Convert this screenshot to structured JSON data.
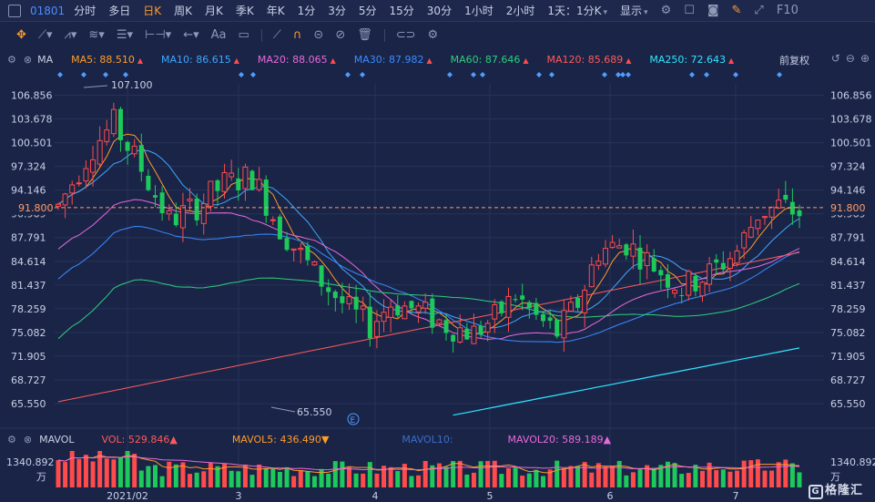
{
  "topbar": {
    "code": "01801",
    "tabs": [
      {
        "label": "分时",
        "active": false
      },
      {
        "label": "多日",
        "active": false
      },
      {
        "label": "日K",
        "active": true
      },
      {
        "label": "周K",
        "active": false
      },
      {
        "label": "月K",
        "active": false
      },
      {
        "label": "季K",
        "active": false
      },
      {
        "label": "年K",
        "active": false
      },
      {
        "label": "1分",
        "active": false
      },
      {
        "label": "3分",
        "active": false
      },
      {
        "label": "5分",
        "active": false
      },
      {
        "label": "15分",
        "active": false
      },
      {
        "label": "30分",
        "active": false
      },
      {
        "label": "1小时",
        "active": false
      },
      {
        "label": "2小时",
        "active": false
      }
    ],
    "period_select": "1天：1分K",
    "display_menu": "显示",
    "f10": "F10"
  },
  "ma_legend": {
    "name": "MA",
    "items": [
      {
        "label": "MA5: 88.510",
        "color": "#ff9c2a",
        "trend": "up"
      },
      {
        "label": "MA10: 86.615",
        "color": "#3fa8ff",
        "trend": "up"
      },
      {
        "label": "MA20: 88.065",
        "color": "#e86ad8",
        "trend": "up"
      },
      {
        "label": "MA30: 87.982",
        "color": "#3a8cff",
        "trend": "up"
      },
      {
        "label": "MA60: 87.646",
        "color": "#2ecf7e",
        "trend": "up"
      },
      {
        "label": "MA120: 85.689",
        "color": "#ff5a5a",
        "trend": "up"
      },
      {
        "label": "MA250: 72.643",
        "color": "#2ee6ff",
        "trend": "up"
      }
    ],
    "adjust": "前复权"
  },
  "vol_legend": {
    "name": "MAVOL",
    "items": [
      {
        "label": "VOL: 529.846",
        "color": "#ff5a5a",
        "trend": "up"
      },
      {
        "label": "MAVOL5: 436.490",
        "color": "#ff9c2a",
        "trend": "down"
      },
      {
        "label": "MAVOL10:",
        "color": "#3a6fc9",
        "trend": ""
      },
      {
        "label": "MAVOL20: 589.189",
        "color": "#e86ad8",
        "trend": "up"
      }
    ]
  },
  "chart_data": {
    "type": "candlestick",
    "y_ticks": [
      "106.856",
      "103.678",
      "100.501",
      "97.324",
      "94.146",
      "90.969",
      "87.791",
      "84.614",
      "81.437",
      "78.259",
      "75.082",
      "71.905",
      "68.727",
      "65.550"
    ],
    "ylim": [
      65.55,
      106.856
    ],
    "current_price": "91.800",
    "high_label": "107.100",
    "low_label": "65.550",
    "x_labels": [
      "2021/02",
      "3",
      "4",
      "5",
      "6",
      "7"
    ],
    "vol_axis_max": "1340.892",
    "vol_unit": "万",
    "colors": {
      "up": "#ff4b4b",
      "down": "#1dc95a",
      "dash": "#ff9c6a"
    }
  },
  "watermark": "格隆汇"
}
